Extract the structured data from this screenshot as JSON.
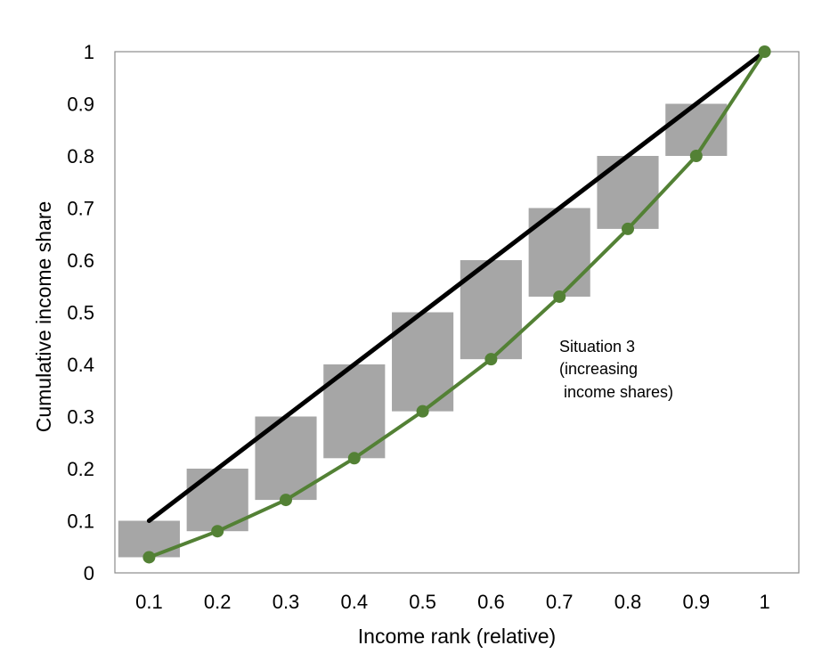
{
  "chart_data": {
    "type": "line",
    "title": "",
    "xlabel": "Income rank (relative)",
    "ylabel": "Cumulative income share",
    "x_ticks": [
      "0.1",
      "0.2",
      "0.3",
      "0.4",
      "0.5",
      "0.6",
      "0.7",
      "0.8",
      "0.9",
      "1"
    ],
    "y_ticks": [
      "0",
      "0.1",
      "0.2",
      "0.3",
      "0.4",
      "0.5",
      "0.6",
      "0.7",
      "0.8",
      "0.9",
      "1"
    ],
    "xlim": [
      0.05,
      1.05
    ],
    "ylim": [
      0,
      1
    ],
    "grid": false,
    "series": [
      {
        "color": "#000000",
        "x": [
          0.1,
          1.0
        ],
        "y": [
          0.1,
          1.0
        ]
      },
      {
        "color": "#538135",
        "marker": "circle",
        "x": [
          0.1,
          0.2,
          0.3,
          0.4,
          0.5,
          0.6,
          0.7,
          0.8,
          0.9,
          1.0
        ],
        "y": [
          0.03,
          0.08,
          0.14,
          0.22,
          0.31,
          0.41,
          0.53,
          0.66,
          0.8,
          1.0
        ]
      }
    ],
    "bars": {
      "color": "#a6a6a6",
      "x": [
        0.1,
        0.2,
        0.3,
        0.4,
        0.5,
        0.6,
        0.7,
        0.8,
        0.9
      ],
      "low": [
        0.03,
        0.08,
        0.14,
        0.22,
        0.31,
        0.41,
        0.53,
        0.66,
        0.8
      ],
      "high": [
        0.1,
        0.2,
        0.3,
        0.4,
        0.5,
        0.6,
        0.7,
        0.8,
        0.9
      ]
    },
    "annotation": [
      "Situation 3",
      "(increasing",
      " income shares)"
    ]
  }
}
